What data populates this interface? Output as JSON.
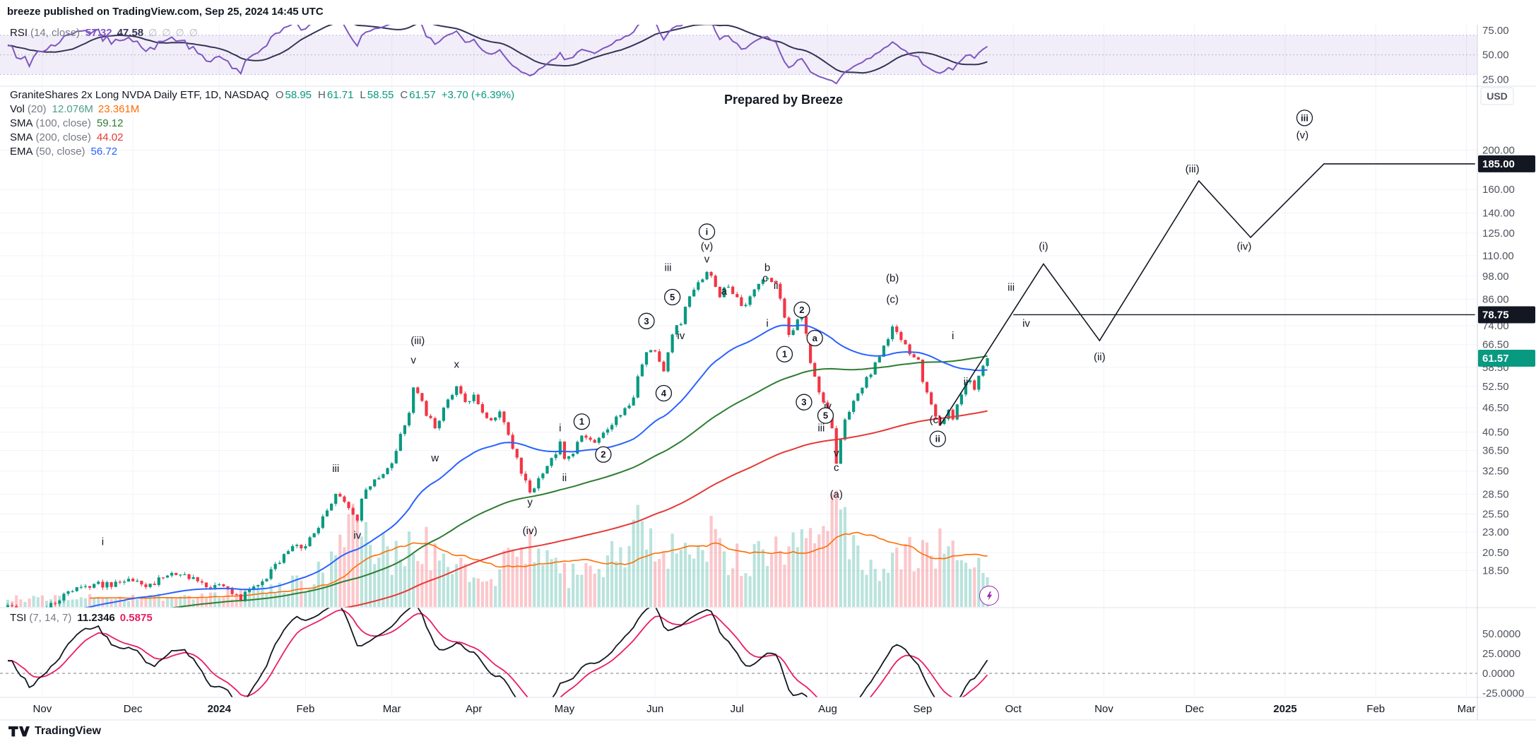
{
  "header": {
    "published_line": "breeze published on TradingView.com, Sep 25, 2024 14:45 UTC"
  },
  "watermark": "Prepared by Breeze",
  "footer": {
    "brand": "TradingView"
  },
  "rsi_pane": {
    "legend": {
      "title": "RSI",
      "params": "(14, close)",
      "value": "57.32",
      "ma_value": "47.58",
      "disabled_plots": [
        "∅",
        "∅",
        "∅",
        "∅"
      ]
    }
  },
  "main_pane": {
    "legend": {
      "symbol": "GraniteShares 2x Long NVDA Daily ETF, 1D, NASDAQ",
      "ohlc": [
        {
          "k": "O",
          "v": "58.95"
        },
        {
          "k": "H",
          "v": "61.71"
        },
        {
          "k": "L",
          "v": "58.55"
        },
        {
          "k": "C",
          "v": "61.57"
        }
      ],
      "change": "+3.70 (+6.39%)",
      "vol_title": "Vol",
      "vol_params": "(20)",
      "vol_v1": "12.076M",
      "vol_v2": "23.361M",
      "sma100_title": "SMA",
      "sma100_params": "(100, close)",
      "sma100_value": "59.12",
      "sma200_title": "SMA",
      "sma200_params": "(200, close)",
      "sma200_value": "44.02",
      "ema50_title": "EMA",
      "ema50_params": "(50, close)",
      "ema50_value": "56.72"
    },
    "axis_currency": "USD"
  },
  "tsi_pane": {
    "legend": {
      "title": "TSI",
      "params": "(7, 14, 7)",
      "value": "11.2346",
      "signal_value": "0.5875"
    }
  },
  "chart_data": {
    "type": "candlestick",
    "symbol": "GraniteShares 2x Long NVDA Daily ETF",
    "exchange": "NASDAQ",
    "interval": "1D",
    "last_bar": {
      "o": 58.95,
      "h": 61.71,
      "l": 58.55,
      "c": 61.57,
      "change_text": "+3.70 (+6.39%)"
    },
    "indicator_values": {
      "rsi": 57.32,
      "rsi_ma": 47.58,
      "vol": "12.076M",
      "vol_ma": "23.361M",
      "sma100": 59.12,
      "sma200": 44.02,
      "ema50": 56.72,
      "tsi": 11.2346,
      "tsi_signal": 0.5875
    },
    "price_axis_labels": [
      [
        200,
        "200.00"
      ],
      [
        160,
        "160.00"
      ],
      [
        140,
        "140.00"
      ],
      [
        125,
        "125.00"
      ],
      [
        110,
        "110.00"
      ],
      [
        98,
        "98.00"
      ],
      [
        86,
        "86.00"
      ],
      [
        74,
        "74.00"
      ],
      [
        66.5,
        "66.50"
      ],
      [
        58.5,
        "58.50"
      ],
      [
        52.5,
        "52.50"
      ],
      [
        46.5,
        "46.50"
      ],
      [
        40.5,
        "40.50"
      ],
      [
        36.5,
        "36.50"
      ],
      [
        32.5,
        "32.50"
      ],
      [
        28.5,
        "28.50"
      ],
      [
        25.5,
        "25.50"
      ],
      [
        23,
        "23.00"
      ],
      [
        20.5,
        "20.50"
      ],
      [
        18.5,
        "18.50"
      ]
    ],
    "price_tags": [
      {
        "p": 185,
        "t": "185.00",
        "bg": "#131722"
      },
      {
        "p": 78.75,
        "t": "78.75",
        "bg": "#131722"
      },
      {
        "p": 61.57,
        "t": "61.57",
        "bg": "#089981"
      }
    ],
    "rsi_axis_labels": [
      [
        75,
        "75.00"
      ],
      [
        50,
        "50.00"
      ],
      [
        25,
        "25.00"
      ]
    ],
    "tsi_axis_labels": [
      [
        50,
        "50.0000"
      ],
      [
        25,
        "25.0000"
      ],
      [
        0,
        "0.0000"
      ],
      [
        -25,
        "-25.0000"
      ]
    ],
    "months": [
      {
        "d": 8,
        "t": "Nov"
      },
      {
        "d": 29,
        "t": "Dec"
      },
      {
        "d": 49,
        "t": "2024",
        "b": 1
      },
      {
        "d": 69,
        "t": "Feb"
      },
      {
        "d": 89,
        "t": "Mar"
      },
      {
        "d": 108,
        "t": "Apr"
      },
      {
        "d": 129,
        "t": "May"
      },
      {
        "d": 150,
        "t": "Jun"
      },
      {
        "d": 169,
        "t": "Jul"
      },
      {
        "d": 190,
        "t": "Aug"
      },
      {
        "d": 212,
        "t": "Sep"
      },
      {
        "d": 233,
        "t": "Oct"
      },
      {
        "d": 254,
        "t": "Nov"
      },
      {
        "d": 275,
        "t": "Dec"
      },
      {
        "d": 296,
        "t": "2025",
        "b": 1
      },
      {
        "d": 317,
        "t": "Feb"
      },
      {
        "d": 338,
        "t": "Mar"
      }
    ],
    "price_anchors": [
      [
        -200,
        8.2
      ],
      [
        -170,
        9.0
      ],
      [
        -140,
        10.2
      ],
      [
        -110,
        11.0
      ],
      [
        -80,
        12.2
      ],
      [
        -60,
        13.0
      ],
      [
        -40,
        13.6
      ],
      [
        -20,
        14.6
      ],
      [
        -5,
        15.0
      ],
      [
        0,
        15.2
      ],
      [
        3,
        14.6
      ],
      [
        5,
        14.2
      ],
      [
        8,
        15.0
      ],
      [
        12,
        15.8
      ],
      [
        16,
        16.6
      ],
      [
        20,
        17.2
      ],
      [
        24,
        17.0
      ],
      [
        29,
        17.5
      ],
      [
        33,
        17.0
      ],
      [
        36,
        17.8
      ],
      [
        40,
        18.3
      ],
      [
        43,
        17.6
      ],
      [
        47,
        16.6
      ],
      [
        49,
        16.9
      ],
      [
        52,
        16.3
      ],
      [
        54,
        15.9
      ],
      [
        57,
        16.8
      ],
      [
        60,
        17.9
      ],
      [
        63,
        19.5
      ],
      [
        66,
        21.0
      ],
      [
        69,
        21.3
      ],
      [
        71,
        22.6
      ],
      [
        74,
        25.8
      ],
      [
        76,
        28.3
      ],
      [
        78,
        27.0
      ],
      [
        80,
        25.2
      ],
      [
        81,
        24.6
      ],
      [
        82,
        28.2
      ],
      [
        84,
        29.8
      ],
      [
        86,
        31.3
      ],
      [
        88,
        32.8
      ],
      [
        89,
        34.5
      ],
      [
        91,
        39.5
      ],
      [
        93,
        46.0
      ],
      [
        94,
        52.5
      ],
      [
        95,
        50.0
      ],
      [
        97,
        45.0
      ],
      [
        99,
        41.5
      ],
      [
        101,
        46.0
      ],
      [
        103,
        50.5
      ],
      [
        104,
        52.5
      ],
      [
        106,
        48.5
      ],
      [
        108,
        49.8
      ],
      [
        110,
        45.0
      ],
      [
        112,
        43.0
      ],
      [
        114,
        46.0
      ],
      [
        116,
        39.8
      ],
      [
        118,
        34.5
      ],
      [
        120,
        30.5
      ],
      [
        121,
        28.4
      ],
      [
        123,
        31.3
      ],
      [
        125,
        33.6
      ],
      [
        127,
        36.2
      ],
      [
        128,
        38.4
      ],
      [
        129,
        34.5
      ],
      [
        131,
        36.3
      ],
      [
        133,
        39.8
      ],
      [
        135,
        38.4
      ],
      [
        137,
        39.2
      ],
      [
        139,
        41.0
      ],
      [
        141,
        44.0
      ],
      [
        143,
        46.0
      ],
      [
        145,
        48.5
      ],
      [
        146,
        56.0
      ],
      [
        148,
        63.0
      ],
      [
        150,
        64.5
      ],
      [
        152,
        57.0
      ],
      [
        153,
        63.0
      ],
      [
        154,
        70.0
      ],
      [
        156,
        76.0
      ],
      [
        158,
        86.0
      ],
      [
        160,
        93.0
      ],
      [
        162,
        100.0
      ],
      [
        163,
        96.5
      ],
      [
        165,
        88.0
      ],
      [
        167,
        92.5
      ],
      [
        169,
        86.0
      ],
      [
        171,
        82.0
      ],
      [
        173,
        90.0
      ],
      [
        175,
        97.0
      ],
      [
        176,
        98.5
      ],
      [
        178,
        93.0
      ],
      [
        180,
        78.0
      ],
      [
        181,
        70.0
      ],
      [
        183,
        75.5
      ],
      [
        184,
        78.0
      ],
      [
        186,
        61.0
      ],
      [
        188,
        51.0
      ],
      [
        190,
        45.0
      ],
      [
        191,
        41.0
      ],
      [
        192,
        33.8
      ],
      [
        194,
        43.5
      ],
      [
        196,
        48.0
      ],
      [
        198,
        52.0
      ],
      [
        200,
        57.0
      ],
      [
        202,
        62.0
      ],
      [
        204,
        68.0
      ],
      [
        205,
        72.5
      ],
      [
        207,
        69.0
      ],
      [
        209,
        64.0
      ],
      [
        211,
        60.0
      ],
      [
        212,
        53.0
      ],
      [
        214,
        47.0
      ],
      [
        216,
        42.3
      ],
      [
        218,
        45.5
      ],
      [
        219,
        43.5
      ],
      [
        220,
        47.0
      ],
      [
        221,
        50.5
      ],
      [
        222,
        53.5
      ],
      [
        223,
        54.5
      ],
      [
        224,
        52.0
      ],
      [
        225,
        55.5
      ],
      [
        226,
        58.2
      ],
      [
        227,
        61.57
      ]
    ],
    "vol_anchors": [
      [
        -5,
        1.5
      ],
      [
        0,
        1.5
      ],
      [
        20,
        1.5
      ],
      [
        45,
        1.8
      ],
      [
        63,
        3
      ],
      [
        74,
        6
      ],
      [
        82,
        14
      ],
      [
        88,
        8
      ],
      [
        94,
        13
      ],
      [
        99,
        8
      ],
      [
        104,
        6
      ],
      [
        110,
        5
      ],
      [
        116,
        7
      ],
      [
        121,
        9
      ],
      [
        127,
        6
      ],
      [
        135,
        5
      ],
      [
        146,
        12
      ],
      [
        152,
        9
      ],
      [
        158,
        8
      ],
      [
        162,
        13
      ],
      [
        168,
        9
      ],
      [
        175,
        8
      ],
      [
        181,
        10
      ],
      [
        186,
        11
      ],
      [
        192,
        16
      ],
      [
        198,
        9
      ],
      [
        205,
        7
      ],
      [
        211,
        9
      ],
      [
        216,
        10
      ],
      [
        221,
        7
      ],
      [
        227,
        8
      ]
    ],
    "annotations": [
      {
        "d": 22,
        "p": 21.8,
        "t": "i"
      },
      {
        "d": 76,
        "p": 33,
        "t": "iii"
      },
      {
        "d": 81,
        "p": 22.6,
        "t": "iv"
      },
      {
        "d": 94,
        "p": 61,
        "t": "v"
      },
      {
        "d": 95,
        "p": 68,
        "t": "(iii)"
      },
      {
        "d": 99,
        "p": 35,
        "t": "w"
      },
      {
        "d": 104,
        "p": 59.5,
        "t": "x"
      },
      {
        "d": 121,
        "p": 27.3,
        "t": "y"
      },
      {
        "d": 121,
        "p": 23.2,
        "t": "(iv)"
      },
      {
        "d": 128,
        "p": 41.5,
        "t": "i"
      },
      {
        "d": 129,
        "p": 31.3,
        "t": "ii"
      },
      {
        "d": 133,
        "p": 43,
        "t": "1",
        "c": 1
      },
      {
        "d": 138,
        "p": 35.7,
        "t": "2",
        "c": 1
      },
      {
        "d": 148,
        "p": 76,
        "t": "3",
        "c": 1
      },
      {
        "d": 152,
        "p": 50.5,
        "t": "4",
        "c": 1
      },
      {
        "d": 154,
        "p": 87,
        "t": "5",
        "c": 1
      },
      {
        "d": 153,
        "p": 103,
        "t": "iii"
      },
      {
        "d": 156,
        "p": 70,
        "t": "iv"
      },
      {
        "d": 162,
        "p": 108,
        "t": "v"
      },
      {
        "d": 162,
        "p": 116,
        "t": "(v)"
      },
      {
        "d": 162,
        "p": 126,
        "t": "i",
        "c": 1
      },
      {
        "d": 166,
        "p": 90,
        "t": "a"
      },
      {
        "d": 176,
        "p": 103,
        "t": "b"
      },
      {
        "d": 175.5,
        "p": 97,
        "t": "c"
      },
      {
        "d": 178,
        "p": 93,
        "t": "ii"
      },
      {
        "d": 176,
        "p": 75,
        "t": "i"
      },
      {
        "d": 180,
        "p": 63,
        "t": "1",
        "c": 1
      },
      {
        "d": 184,
        "p": 81,
        "t": "2",
        "c": 1
      },
      {
        "d": 184.5,
        "p": 48,
        "t": "3",
        "c": 1
      },
      {
        "d": 187,
        "p": 69,
        "t": "a",
        "c": 1
      },
      {
        "d": 190,
        "p": 47,
        "t": "iv"
      },
      {
        "d": 188.5,
        "p": 41.5,
        "t": "iii"
      },
      {
        "d": 189.5,
        "p": 44.5,
        "t": "5",
        "c": 1
      },
      {
        "d": 192,
        "p": 36,
        "t": "v"
      },
      {
        "d": 192,
        "p": 33.2,
        "t": "c"
      },
      {
        "d": 192,
        "p": 28.5,
        "t": "(a)"
      },
      {
        "d": 205,
        "p": 97,
        "t": "(b)"
      },
      {
        "d": 205,
        "p": 86,
        "t": "(c)"
      },
      {
        "d": 219,
        "p": 70,
        "t": "i"
      },
      {
        "d": 222,
        "p": 54,
        "t": "ii"
      },
      {
        "d": 215,
        "p": 43.5,
        "t": "(c)"
      },
      {
        "d": 215.5,
        "p": 39,
        "t": "ii",
        "c": 1
      },
      {
        "d": 232.5,
        "p": 92,
        "t": "iii"
      },
      {
        "d": 236,
        "p": 75,
        "t": "iv"
      },
      {
        "d": 240,
        "p": 116,
        "t": "(i)"
      },
      {
        "d": 253,
        "p": 62,
        "t": "(ii)"
      },
      {
        "d": 274.5,
        "p": 180,
        "t": "(iii)"
      },
      {
        "d": 286.5,
        "p": 116,
        "t": "(iv)"
      },
      {
        "d": 300,
        "p": 218,
        "t": "(v)"
      },
      {
        "d": 300.5,
        "p": 240,
        "t": "iii",
        "c": 1
      }
    ],
    "projection": {
      "path": [
        [
          216,
          42
        ],
        [
          240,
          105
        ],
        [
          253,
          68
        ],
        [
          276,
          168
        ],
        [
          288,
          122
        ],
        [
          305,
          185
        ],
        [
          340,
          185
        ]
      ],
      "ray_7875": [
        [
          233,
          78.75
        ],
        [
          340,
          78.75
        ]
      ]
    },
    "colors": {
      "up": "#089981",
      "down": "#F23645",
      "vol_up": "rgba(8,153,129,0.28)",
      "vol_down": "rgba(242,54,69,0.28)",
      "vol_ma": "#FF6D00",
      "ema50": "#2962FF",
      "sma100": "#2E7D32",
      "sma200": "#E53935",
      "proj": "#131722",
      "grid": "#f0f3fa",
      "sep": "#e0e3eb",
      "axis_line": "#d1d4dc",
      "axis_text": "#50535E",
      "label": "#131722",
      "rsi": "#7E57C2",
      "rsi_ma": "#343456",
      "rsi_band": "rgba(126,87,194,0.10)",
      "rsi_band_line": "rgba(149,117,205,0.55)",
      "tsi": "#131722",
      "tsi_signal": "#E91E63",
      "zero_line": "#787b86"
    }
  }
}
